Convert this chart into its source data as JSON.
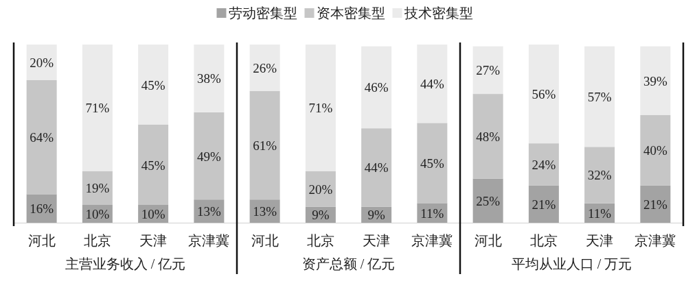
{
  "chart_data": [
    {
      "type": "bar",
      "stacked": true,
      "xlabel": "主营业务收入 / 亿元",
      "categories": [
        "河北",
        "北京",
        "天津",
        "京津冀"
      ],
      "ylim": [
        0,
        100
      ],
      "tick_labels": "x",
      "series": [
        {
          "color": "#a3a3a3",
          "values": [
            16,
            10,
            10,
            13
          ],
          "value_labels": [
            "16%",
            "10%",
            "10%",
            "13%"
          ]
        },
        {
          "color": "#c6c6c6",
          "values": [
            64,
            19,
            45,
            49
          ],
          "value_labels": [
            "64%",
            "19%",
            "45%",
            "49%"
          ]
        },
        {
          "color": "#ebebeb",
          "values": [
            20,
            71,
            45,
            38
          ],
          "value_labels": [
            "20%",
            "71%",
            "45%",
            "38%"
          ]
        }
      ]
    },
    {
      "type": "bar",
      "stacked": true,
      "xlabel": "资产总额 / 亿元",
      "categories": [
        "河北",
        "北京",
        "天津",
        "京津冀"
      ],
      "ylim": [
        0,
        100
      ],
      "tick_labels": "x",
      "legend": "top",
      "series": [
        {
          "name": "劳动密集型",
          "color": "#a3a3a3",
          "values": [
            13,
            9,
            9,
            11
          ],
          "value_labels": [
            "13%",
            "9%",
            "9%",
            "11%"
          ]
        },
        {
          "name": "资本密集型",
          "color": "#c6c6c6",
          "values": [
            61,
            20,
            44,
            45
          ],
          "value_labels": [
            "61%",
            "20%",
            "44%",
            "45%"
          ]
        },
        {
          "name": "技术密集型",
          "color": "#ebebeb",
          "values": [
            26,
            71,
            46,
            44
          ],
          "value_labels": [
            "26%",
            "71%",
            "46%",
            "44%"
          ]
        }
      ]
    },
    {
      "type": "bar",
      "stacked": true,
      "xlabel": "平均从业人口 / 万元",
      "categories": [
        "河北",
        "北京",
        "天津",
        "京津冀"
      ],
      "ylim": [
        0,
        101
      ],
      "tick_labels": "x",
      "series": [
        {
          "color": "#a3a3a3",
          "values": [
            25,
            21,
            11,
            21
          ],
          "value_labels": [
            "25%",
            "21%",
            "11%",
            "21%"
          ]
        },
        {
          "color": "#c6c6c6",
          "values": [
            48,
            24,
            32,
            40
          ],
          "value_labels": [
            "48%",
            "24%",
            "32%",
            "40%"
          ]
        },
        {
          "color": "#ebebeb",
          "values": [
            27,
            56,
            57,
            39
          ],
          "value_labels": [
            "27%",
            "56%",
            "57%",
            "39%"
          ]
        }
      ]
    }
  ]
}
